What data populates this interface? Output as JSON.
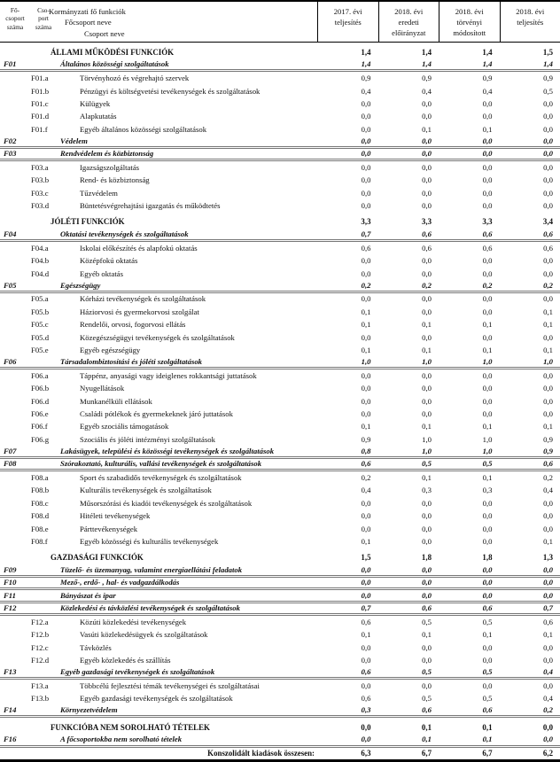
{
  "table": {
    "header": {
      "col_fo": "Fő-\ncsoport\nszáma",
      "col_cso": "Cso-\nport\nszáma",
      "name_lines": [
        "Kormányzati fő funkciók",
        "Főcsoport neve",
        "Csoport neve"
      ],
      "value_cols": [
        "2017. évi\nteljesítés",
        "2018. évi\neredeti\nelőirányzat",
        "2018. évi\ntörvényi\nmódosított",
        "2018. évi\nteljesítés"
      ]
    },
    "rows": [
      {
        "type": "section",
        "name": "ÁLLAMI MŰKÖDÉSI FUNKCIÓK",
        "values": [
          "1,4",
          "1,4",
          "1,4",
          "1,5"
        ]
      },
      {
        "type": "group",
        "code": "F01",
        "name": "Általános közösségi szolgáltatások",
        "values": [
          "1,4",
          "1,4",
          "1,4",
          "1,4"
        ]
      },
      {
        "type": "sub",
        "code": "F01.a",
        "name": "Törvényhozó és végrehajtó szervek",
        "values": [
          "0,9",
          "0,9",
          "0,9",
          "0,9"
        ]
      },
      {
        "type": "sub",
        "code": "F01.b",
        "name": "Pénzügyi és költségvetési tevékenységek és szolgáltatások",
        "values": [
          "0,4",
          "0,4",
          "0,4",
          "0,5"
        ]
      },
      {
        "type": "sub",
        "code": "F01.c",
        "name": "Külügyek",
        "values": [
          "0,0",
          "0,0",
          "0,0",
          "0,0"
        ]
      },
      {
        "type": "sub",
        "code": "F01.d",
        "name": "Alapkutatás",
        "values": [
          "0,0",
          "0,0",
          "0,0",
          "0,0"
        ]
      },
      {
        "type": "sub",
        "code": "F01.f",
        "name": "Egyéb általános közösségi szolgáltatások",
        "values": [
          "0,0",
          "0,1",
          "0,1",
          "0,0"
        ]
      },
      {
        "type": "group",
        "code": "F02",
        "name": "Védelem",
        "values": [
          "0,0",
          "0,0",
          "0,0",
          "0,0"
        ]
      },
      {
        "type": "group",
        "code": "F03",
        "name": "Rendvédelem és közbiztonság",
        "values": [
          "0,0",
          "0,0",
          "0,0",
          "0,0"
        ]
      },
      {
        "type": "sub",
        "code": "F03.a",
        "name": "Igazságszolgáltatás",
        "values": [
          "0,0",
          "0,0",
          "0,0",
          "0,0"
        ]
      },
      {
        "type": "sub",
        "code": "F03.b",
        "name": "Rend- és közbiztonság",
        "values": [
          "0,0",
          "0,0",
          "0,0",
          "0,0"
        ]
      },
      {
        "type": "sub",
        "code": "F03.c",
        "name": "Tűzvédelem",
        "values": [
          "0,0",
          "0,0",
          "0,0",
          "0,0"
        ]
      },
      {
        "type": "sub",
        "code": "F03.d",
        "name": "Büntetésvégrehajtási igazgatás és működtetés",
        "values": [
          "0,0",
          "0,0",
          "0,0",
          "0,0"
        ]
      },
      {
        "type": "section",
        "name": "JÓLÉTI FUNKCIÓK",
        "values": [
          "3,3",
          "3,3",
          "3,3",
          "3,4"
        ]
      },
      {
        "type": "group",
        "code": "F04",
        "name": "Oktatási tevékenységek és szolgáltatások",
        "values": [
          "0,7",
          "0,6",
          "0,6",
          "0,6"
        ]
      },
      {
        "type": "sub",
        "code": "F04.a",
        "name": "Iskolai előkészítés és alapfokú oktatás",
        "values": [
          "0,6",
          "0,6",
          "0,6",
          "0,6"
        ]
      },
      {
        "type": "sub",
        "code": "F04.b",
        "name": "Középfokú oktatás",
        "values": [
          "0,0",
          "0,0",
          "0,0",
          "0,0"
        ]
      },
      {
        "type": "sub",
        "code": "F04.d",
        "name": "Egyéb oktatás",
        "values": [
          "0,0",
          "0,0",
          "0,0",
          "0,0"
        ]
      },
      {
        "type": "group",
        "code": "F05",
        "name": "Egészségügy",
        "values": [
          "0,2",
          "0,2",
          "0,2",
          "0,2"
        ]
      },
      {
        "type": "sub",
        "code": "F05.a",
        "name": "Kórházi tevékenységek és szolgáltatások",
        "values": [
          "0,0",
          "0,0",
          "0,0",
          "0,0"
        ]
      },
      {
        "type": "sub",
        "code": "F05.b",
        "name": "Háziorvosi és gyermekorvosi szolgálat",
        "values": [
          "0,1",
          "0,0",
          "0,0",
          "0,1"
        ]
      },
      {
        "type": "sub",
        "code": "F05.c",
        "name": "Rendelői, orvosi, fogorvosi ellátás",
        "values": [
          "0,1",
          "0,1",
          "0,1",
          "0,1"
        ]
      },
      {
        "type": "sub",
        "code": "F05.d",
        "name": "Közegészségügyi tevékenységek és szolgáltatások",
        "values": [
          "0,0",
          "0,0",
          "0,0",
          "0,0"
        ]
      },
      {
        "type": "sub",
        "code": "F05.e",
        "name": "Egyéb egészségügy",
        "values": [
          "0,1",
          "0,1",
          "0,1",
          "0,1"
        ]
      },
      {
        "type": "group",
        "code": "F06",
        "name": "Társadalombiztosítási és jóléti szolgáltatások",
        "values": [
          "1,0",
          "1,0",
          "1,0",
          "1,0"
        ]
      },
      {
        "type": "sub",
        "code": "F06.a",
        "name": "Táppénz, anyasági vagy ideiglenes rokkantsági juttatások",
        "values": [
          "0,0",
          "0,0",
          "0,0",
          "0,0"
        ]
      },
      {
        "type": "sub",
        "code": "F06.b",
        "name": "Nyugellátások",
        "values": [
          "0,0",
          "0,0",
          "0,0",
          "0,0"
        ]
      },
      {
        "type": "sub",
        "code": "F06.d",
        "name": "Munkanélküli ellátások",
        "values": [
          "0,0",
          "0,0",
          "0,0",
          "0,0"
        ]
      },
      {
        "type": "sub",
        "code": "F06.e",
        "name": "Családi pótlékok és gyermekeknek járó juttatások",
        "values": [
          "0,0",
          "0,0",
          "0,0",
          "0,0"
        ]
      },
      {
        "type": "sub",
        "code": "F06.f",
        "name": "Egyéb szociális támogatások",
        "values": [
          "0,1",
          "0,1",
          "0,1",
          "0,1"
        ]
      },
      {
        "type": "sub",
        "code": "F06.g",
        "name": "Szociális és jóléti intézményi szolgáltatások",
        "values": [
          "0,9",
          "1,0",
          "1,0",
          "0,9"
        ]
      },
      {
        "type": "group",
        "code": "F07",
        "name": "Lakásügyek, települési és közösségi tevékenységek és szolgáltatások",
        "values": [
          "0,8",
          "1,0",
          "1,0",
          "0,9"
        ]
      },
      {
        "type": "group",
        "code": "F08",
        "name": "Szórakoztató, kulturális, vallási tevékenységek és szolgáltatások",
        "values": [
          "0,6",
          "0,5",
          "0,5",
          "0,6"
        ]
      },
      {
        "type": "sub",
        "code": "F08.a",
        "name": "Sport és szabadidős tevékenységek és szolgáltatások",
        "values": [
          "0,2",
          "0,1",
          "0,1",
          "0,2"
        ]
      },
      {
        "type": "sub",
        "code": "F08.b",
        "name": "Kulturális tevékenységek és szolgáltatások",
        "values": [
          "0,4",
          "0,3",
          "0,3",
          "0,4"
        ]
      },
      {
        "type": "sub",
        "code": "F08.c",
        "name": "Műsorszórási és kiadói tevékenységek és szolgáltatások",
        "values": [
          "0,0",
          "0,0",
          "0,0",
          "0,0"
        ]
      },
      {
        "type": "sub",
        "code": "F08.d",
        "name": "Hitéleti tevékenységek",
        "values": [
          "0,0",
          "0,0",
          "0,0",
          "0,0"
        ]
      },
      {
        "type": "sub",
        "code": "F08.e",
        "name": "Párttevékenységek",
        "values": [
          "0,0",
          "0,0",
          "0,0",
          "0,0"
        ]
      },
      {
        "type": "sub",
        "code": "F08.f",
        "name": "Egyéb közösségi és kulturális tevékenységek",
        "values": [
          "0,1",
          "0,0",
          "0,0",
          "0,1"
        ]
      },
      {
        "type": "section",
        "name": "GAZDASÁGI FUNKCIÓK",
        "values": [
          "1,5",
          "1,8",
          "1,8",
          "1,3"
        ]
      },
      {
        "type": "group",
        "code": "F09",
        "name": "Tüzelő- és üzemanyag, valamint energiaellátási feladatok",
        "values": [
          "0,0",
          "0,0",
          "0,0",
          "0,0"
        ]
      },
      {
        "type": "group",
        "code": "F10",
        "name": "Mező-, erdő- , hal- és vadgazdálkodás",
        "values": [
          "0,0",
          "0,0",
          "0,0",
          "0,0"
        ]
      },
      {
        "type": "group",
        "code": "F11",
        "name": "Bányászat és ipar",
        "values": [
          "0,0",
          "0,0",
          "0,0",
          "0,0"
        ]
      },
      {
        "type": "group",
        "code": "F12",
        "name": "Közlekedési és távközlési tevékenységek és szolgáltatások",
        "values": [
          "0,7",
          "0,6",
          "0,6",
          "0,7"
        ]
      },
      {
        "type": "sub",
        "code": "F12.a",
        "name": "Közúti közlekedési tevékenységek",
        "values": [
          "0,6",
          "0,5",
          "0,5",
          "0,6"
        ]
      },
      {
        "type": "sub",
        "code": "F12.b",
        "name": "Vasúti közlekedésügyek és szolgáltatások",
        "values": [
          "0,1",
          "0,1",
          "0,1",
          "0,1"
        ]
      },
      {
        "type": "sub",
        "code": "F12.c",
        "name": "Távközlés",
        "values": [
          "0,0",
          "0,0",
          "0,0",
          "0,0"
        ]
      },
      {
        "type": "sub",
        "code": "F12.d",
        "name": "Egyéb közlekedés és szállítás",
        "values": [
          "0,0",
          "0,0",
          "0,0",
          "0,0"
        ]
      },
      {
        "type": "group",
        "code": "F13",
        "name": "Egyéb gazdasági tevékenységek és szolgáltatások",
        "values": [
          "0,6",
          "0,5",
          "0,5",
          "0,4"
        ]
      },
      {
        "type": "sub",
        "code": "F13.a",
        "name": "Többcélú fejlesztési témák tevékenységei és szolgáltatásai",
        "values": [
          "0,0",
          "0,0",
          "0,0",
          "0,0"
        ]
      },
      {
        "type": "sub",
        "code": "F13.b",
        "name": "Egyéb gazdasági tevékenységek és szolgáltatások",
        "values": [
          "0,6",
          "0,5",
          "0,5",
          "0,4"
        ]
      },
      {
        "type": "group",
        "code": "F14",
        "name": "Környezetvédelem",
        "values": [
          "0,3",
          "0,6",
          "0,6",
          "0,2"
        ]
      },
      {
        "type": "section",
        "name": "FUNKCIÓBA NEM SOROLHATÓ TÉTELEK",
        "values": [
          "0,0",
          "0,1",
          "0,1",
          "0,0"
        ]
      },
      {
        "type": "group",
        "code": "F16",
        "name": "A főcsoportokba nem sorolható tételek",
        "values": [
          "0,0",
          "0,1",
          "0,1",
          "0,0"
        ]
      },
      {
        "type": "total",
        "name": "Konszolidált kiadások összesen:",
        "values": [
          "6,3",
          "6,7",
          "6,7",
          "6,2"
        ]
      }
    ]
  }
}
